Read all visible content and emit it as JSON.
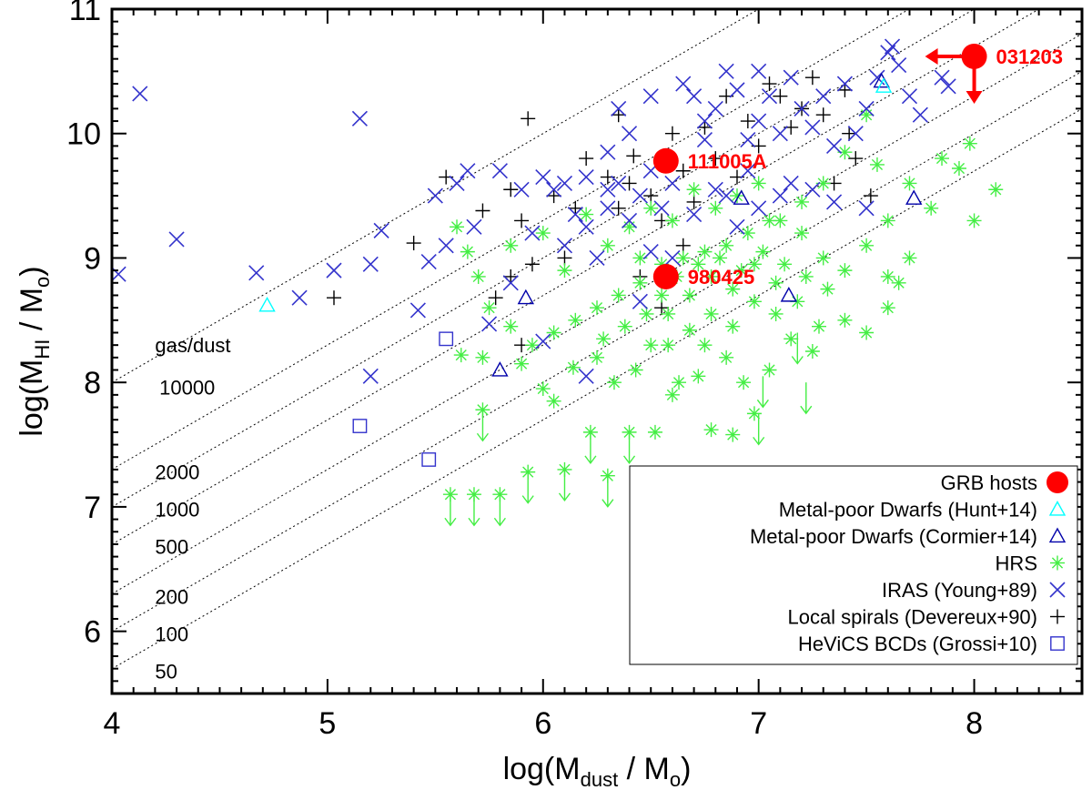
{
  "chart_data": {
    "type": "scatter",
    "title": "",
    "xlabel": "log(M_dust / M_o)",
    "ylabel": "log(M_HI / M_o)",
    "xlim": [
      4,
      8.5
    ],
    "ylim": [
      5.5,
      11
    ],
    "x_ticks": [
      4,
      5,
      6,
      7,
      8
    ],
    "y_ticks": [
      6,
      7,
      8,
      9,
      10,
      11
    ],
    "xlabel_parts": {
      "pre": "log(M",
      "sub": "dust",
      "post": " / M",
      "sub2": "o",
      "end": ")"
    },
    "ylabel_parts": {
      "pre": "log(M",
      "sub": "HI",
      "post": " / M",
      "sub2": "o",
      "end": ")"
    },
    "gas_dust_title": "gas/dust",
    "ratio_lines": [
      {
        "ratio": 10000,
        "label": "10000",
        "label_x": 4.22,
        "label_y": 7.96
      },
      {
        "ratio": 2000,
        "label": "2000",
        "label_x": 4.2,
        "label_y": 7.28
      },
      {
        "ratio": 1000,
        "label": "1000",
        "label_x": 4.2,
        "label_y": 6.98
      },
      {
        "ratio": 500,
        "label": "500",
        "label_x": 4.2,
        "label_y": 6.68
      },
      {
        "ratio": 200,
        "label": "200",
        "label_x": 4.2,
        "label_y": 6.28
      },
      {
        "ratio": 100,
        "label": "100",
        "label_x": 4.2,
        "label_y": 5.98
      },
      {
        "ratio": 50,
        "label": "50",
        "label_x": 4.2,
        "label_y": 5.68
      }
    ],
    "grb_hosts": [
      {
        "name": "031203",
        "x": 8.0,
        "y": 10.62,
        "upper_x": true,
        "upper_y": true
      },
      {
        "name": "111005A",
        "x": 6.57,
        "y": 9.78,
        "upper_x": false,
        "upper_y": false
      },
      {
        "name": "980425",
        "x": 6.57,
        "y": 8.85,
        "upper_x": false,
        "upper_y": false
      }
    ],
    "series": [
      {
        "name": "Metal-poor Dwarfs (Hunt+14)",
        "marker": "triangle",
        "color": "#00ffff",
        "points": [
          [
            4.72,
            8.62
          ],
          [
            7.58,
            10.38
          ]
        ]
      },
      {
        "name": "Metal-poor Dwarfs (Cormier+14)",
        "marker": "triangle",
        "color": "#0000aa",
        "points": [
          [
            5.8,
            8.1
          ],
          [
            5.92,
            8.68
          ],
          [
            6.92,
            9.48
          ],
          [
            7.14,
            8.7
          ],
          [
            7.57,
            10.42
          ],
          [
            7.72,
            9.48
          ]
        ]
      },
      {
        "name": "HRS",
        "marker": "asterisk",
        "color": "#44ee44",
        "points": [
          [
            5.57,
            7.1
          ],
          [
            5.68,
            7.1
          ],
          [
            5.8,
            7.1
          ],
          [
            5.72,
            7.78
          ],
          [
            5.93,
            7.28
          ],
          [
            6.1,
            7.3
          ],
          [
            6.3,
            7.25
          ],
          [
            6.22,
            7.6
          ],
          [
            6.4,
            7.6
          ],
          [
            6.52,
            7.6
          ],
          [
            6.78,
            7.62
          ],
          [
            6.88,
            7.58
          ],
          [
            6.6,
            7.9
          ],
          [
            6.72,
            8.05
          ],
          [
            6.93,
            8.0
          ],
          [
            6.98,
            7.75
          ],
          [
            5.62,
            8.22
          ],
          [
            5.72,
            8.2
          ],
          [
            5.9,
            8.15
          ],
          [
            6.0,
            7.95
          ],
          [
            6.05,
            7.85
          ],
          [
            6.14,
            8.12
          ],
          [
            6.25,
            8.2
          ],
          [
            6.33,
            8.0
          ],
          [
            6.43,
            8.1
          ],
          [
            6.5,
            8.3
          ],
          [
            6.58,
            8.3
          ],
          [
            6.63,
            8.0
          ],
          [
            6.75,
            8.3
          ],
          [
            6.85,
            8.2
          ],
          [
            7.05,
            8.1
          ],
          [
            7.15,
            8.35
          ],
          [
            7.25,
            8.25
          ],
          [
            7.28,
            8.45
          ],
          [
            7.4,
            8.5
          ],
          [
            7.5,
            8.4
          ],
          [
            7.6,
            8.6
          ],
          [
            7.6,
            8.85
          ],
          [
            7.65,
            8.8
          ],
          [
            7.7,
            9.0
          ],
          [
            7.8,
            9.4
          ],
          [
            7.85,
            9.8
          ],
          [
            7.93,
            9.72
          ],
          [
            8.0,
            9.3
          ],
          [
            8.1,
            9.55
          ],
          [
            7.98,
            9.92
          ],
          [
            7.5,
            10.15
          ],
          [
            7.4,
            9.85
          ],
          [
            7.3,
            9.6
          ],
          [
            7.2,
            9.45
          ],
          [
            7.05,
            9.3
          ],
          [
            6.95,
            9.2
          ],
          [
            6.85,
            9.1
          ],
          [
            6.75,
            9.05
          ],
          [
            6.65,
            9.0
          ],
          [
            6.55,
            8.95
          ],
          [
            6.45,
            8.8
          ],
          [
            6.35,
            8.7
          ],
          [
            6.25,
            8.6
          ],
          [
            6.15,
            8.5
          ],
          [
            6.05,
            8.4
          ],
          [
            5.95,
            8.3
          ],
          [
            5.85,
            8.45
          ],
          [
            5.75,
            8.6
          ],
          [
            5.7,
            8.85
          ],
          [
            5.65,
            9.05
          ],
          [
            5.6,
            9.25
          ],
          [
            5.85,
            9.1
          ],
          [
            6.0,
            9.2
          ],
          [
            6.1,
            8.9
          ],
          [
            6.2,
            9.35
          ],
          [
            6.3,
            9.1
          ],
          [
            6.4,
            9.25
          ],
          [
            6.5,
            9.4
          ],
          [
            6.6,
            9.3
          ],
          [
            6.7,
            9.55
          ],
          [
            6.8,
            9.4
          ],
          [
            6.9,
            9.5
          ],
          [
            7.0,
            9.6
          ],
          [
            7.1,
            9.3
          ],
          [
            7.2,
            9.2
          ],
          [
            7.3,
            9.0
          ],
          [
            7.4,
            8.9
          ],
          [
            7.5,
            9.1
          ],
          [
            7.6,
            9.3
          ],
          [
            7.7,
            9.6
          ],
          [
            7.55,
            9.75
          ],
          [
            6.68,
            8.7
          ],
          [
            6.78,
            8.85
          ],
          [
            6.88,
            8.75
          ],
          [
            6.98,
            8.95
          ],
          [
            7.08,
            8.8
          ],
          [
            7.18,
            8.65
          ],
          [
            6.48,
            8.55
          ],
          [
            6.38,
            8.45
          ],
          [
            6.28,
            8.35
          ],
          [
            6.58,
            8.55
          ],
          [
            6.68,
            8.42
          ],
          [
            6.78,
            8.55
          ],
          [
            6.88,
            8.45
          ],
          [
            6.98,
            8.65
          ],
          [
            7.08,
            8.55
          ],
          [
            6.45,
            9.0
          ],
          [
            6.55,
            8.7
          ],
          [
            6.62,
            8.85
          ],
          [
            6.72,
            8.95
          ],
          [
            6.82,
            9.0
          ],
          [
            6.92,
            8.9
          ],
          [
            7.02,
            9.05
          ],
          [
            7.12,
            8.95
          ],
          [
            7.22,
            8.85
          ],
          [
            7.32,
            8.75
          ]
        ]
      },
      {
        "name": "IRAS (Young+89)",
        "marker": "x",
        "color": "#3333cc",
        "points": [
          [
            4.03,
            8.87
          ],
          [
            4.13,
            10.32
          ],
          [
            4.3,
            9.15
          ],
          [
            4.67,
            8.88
          ],
          [
            4.87,
            8.68
          ],
          [
            5.03,
            8.9
          ],
          [
            5.15,
            10.12
          ],
          [
            5.2,
            8.05
          ],
          [
            5.2,
            8.95
          ],
          [
            5.25,
            9.22
          ],
          [
            5.42,
            8.58
          ],
          [
            5.47,
            8.97
          ],
          [
            5.5,
            9.5
          ],
          [
            5.6,
            9.6
          ],
          [
            5.65,
            9.7
          ],
          [
            5.68,
            9.25
          ],
          [
            5.75,
            8.47
          ],
          [
            5.8,
            9.7
          ],
          [
            5.85,
            8.8
          ],
          [
            5.95,
            9.2
          ],
          [
            6.0,
            8.33
          ],
          [
            6.0,
            9.65
          ],
          [
            6.05,
            9.55
          ],
          [
            6.1,
            9.6
          ],
          [
            6.15,
            9.35
          ],
          [
            6.2,
            9.65
          ],
          [
            6.2,
            8.05
          ],
          [
            6.25,
            9.0
          ],
          [
            6.3,
            9.4
          ],
          [
            6.3,
            9.85
          ],
          [
            6.35,
            9.6
          ],
          [
            6.35,
            10.2
          ],
          [
            6.4,
            9.3
          ],
          [
            6.45,
            9.5
          ],
          [
            6.45,
            8.65
          ],
          [
            6.5,
            9.7
          ],
          [
            6.5,
            9.05
          ],
          [
            6.55,
            9.4
          ],
          [
            6.6,
            9.0
          ],
          [
            6.65,
            10.4
          ],
          [
            6.7,
            10.3
          ],
          [
            6.75,
            10.1
          ],
          [
            6.75,
            9.95
          ],
          [
            6.8,
            10.2
          ],
          [
            6.85,
            10.5
          ],
          [
            6.85,
            9.5
          ],
          [
            6.9,
            10.35
          ],
          [
            6.95,
            9.95
          ],
          [
            6.95,
            9.7
          ],
          [
            7.0,
            10.5
          ],
          [
            7.0,
            10.1
          ],
          [
            7.05,
            10.3
          ],
          [
            7.1,
            10.0
          ],
          [
            7.15,
            10.45
          ],
          [
            7.15,
            9.6
          ],
          [
            7.2,
            10.2
          ],
          [
            7.25,
            10.05
          ],
          [
            7.3,
            10.3
          ],
          [
            7.35,
            9.9
          ],
          [
            7.4,
            10.4
          ],
          [
            7.45,
            10.0
          ],
          [
            7.5,
            10.2
          ],
          [
            7.55,
            10.45
          ],
          [
            7.6,
            10.65
          ],
          [
            7.62,
            10.7
          ],
          [
            7.65,
            10.55
          ],
          [
            7.7,
            10.3
          ],
          [
            7.75,
            10.15
          ],
          [
            7.85,
            10.45
          ],
          [
            7.88,
            10.38
          ],
          [
            6.6,
            9.6
          ],
          [
            6.7,
            9.35
          ],
          [
            6.8,
            9.55
          ],
          [
            6.9,
            9.25
          ],
          [
            7.0,
            9.4
          ],
          [
            7.1,
            9.5
          ],
          [
            7.25,
            9.55
          ],
          [
            7.35,
            9.45
          ],
          [
            7.5,
            9.4
          ],
          [
            6.5,
            10.3
          ],
          [
            6.4,
            10.0
          ],
          [
            6.3,
            9.55
          ],
          [
            6.2,
            9.25
          ],
          [
            6.1,
            9.1
          ],
          [
            5.9,
            9.55
          ],
          [
            5.55,
            9.1
          ]
        ]
      },
      {
        "name": "Local spirals (Devereux+90)",
        "marker": "plus",
        "color": "#000000",
        "points": [
          [
            5.03,
            8.68
          ],
          [
            5.4,
            9.12
          ],
          [
            5.55,
            9.65
          ],
          [
            5.72,
            9.38
          ],
          [
            5.78,
            8.68
          ],
          [
            5.85,
            9.55
          ],
          [
            5.9,
            9.3
          ],
          [
            5.9,
            8.3
          ],
          [
            5.93,
            10.12
          ],
          [
            6.05,
            9.5
          ],
          [
            6.1,
            9.0
          ],
          [
            6.2,
            9.8
          ],
          [
            6.3,
            9.65
          ],
          [
            6.35,
            10.15
          ],
          [
            6.42,
            9.82
          ],
          [
            6.5,
            9.5
          ],
          [
            6.55,
            9.3
          ],
          [
            6.6,
            10.0
          ],
          [
            6.65,
            9.7
          ],
          [
            6.7,
            9.45
          ],
          [
            6.75,
            10.05
          ],
          [
            6.8,
            9.8
          ],
          [
            6.85,
            10.3
          ],
          [
            6.9,
            9.65
          ],
          [
            6.95,
            10.1
          ],
          [
            7.0,
            9.9
          ],
          [
            7.05,
            10.4
          ],
          [
            7.1,
            10.3
          ],
          [
            7.15,
            10.05
          ],
          [
            7.2,
            10.2
          ],
          [
            7.25,
            10.45
          ],
          [
            7.3,
            10.15
          ],
          [
            7.35,
            9.6
          ],
          [
            7.4,
            10.35
          ],
          [
            7.42,
            10.0
          ],
          [
            7.45,
            9.8
          ],
          [
            7.52,
            9.5
          ],
          [
            6.55,
            8.6
          ],
          [
            6.45,
            8.85
          ],
          [
            6.65,
            9.1
          ],
          [
            6.4,
            9.6
          ],
          [
            6.35,
            9.4
          ],
          [
            6.15,
            9.4
          ],
          [
            5.95,
            8.95
          ],
          [
            5.85,
            8.85
          ]
        ]
      },
      {
        "name": "HeViCS BCDs (Grossi+10)",
        "marker": "square",
        "color": "#3333cc",
        "points": [
          [
            5.15,
            7.65
          ],
          [
            5.47,
            7.38
          ],
          [
            5.55,
            8.35
          ]
        ]
      }
    ],
    "upper_limit_hrs": [
      [
        5.57,
        7.1
      ],
      [
        5.68,
        7.1
      ],
      [
        5.8,
        7.1
      ],
      [
        5.72,
        7.78
      ],
      [
        5.93,
        7.28
      ],
      [
        6.1,
        7.3
      ],
      [
        6.3,
        7.25
      ],
      [
        6.22,
        7.6
      ],
      [
        6.4,
        7.6
      ],
      [
        7.0,
        7.75
      ],
      [
        7.02,
        8.05
      ],
      [
        7.18,
        8.4
      ],
      [
        7.22,
        8.0
      ]
    ],
    "legend": [
      {
        "label": "GRB hosts",
        "marker": "circle",
        "color": "#ff0000"
      },
      {
        "label": "Metal-poor Dwarfs (Hunt+14)",
        "marker": "triangle",
        "color": "#00ffff"
      },
      {
        "label": "Metal-poor Dwarfs (Cormier+14)",
        "marker": "triangle",
        "color": "#0000aa"
      },
      {
        "label": "HRS",
        "marker": "asterisk",
        "color": "#44ee44"
      },
      {
        "label": "IRAS (Young+89)",
        "marker": "x",
        "color": "#3333cc"
      },
      {
        "label": "Local spirals (Devereux+90)",
        "marker": "plus",
        "color": "#000000"
      },
      {
        "label": "HeViCS BCDs (Grossi+10)",
        "marker": "square",
        "color": "#3333cc"
      }
    ],
    "legend_position": "bottom-right",
    "grb_color": "#ff0000"
  }
}
